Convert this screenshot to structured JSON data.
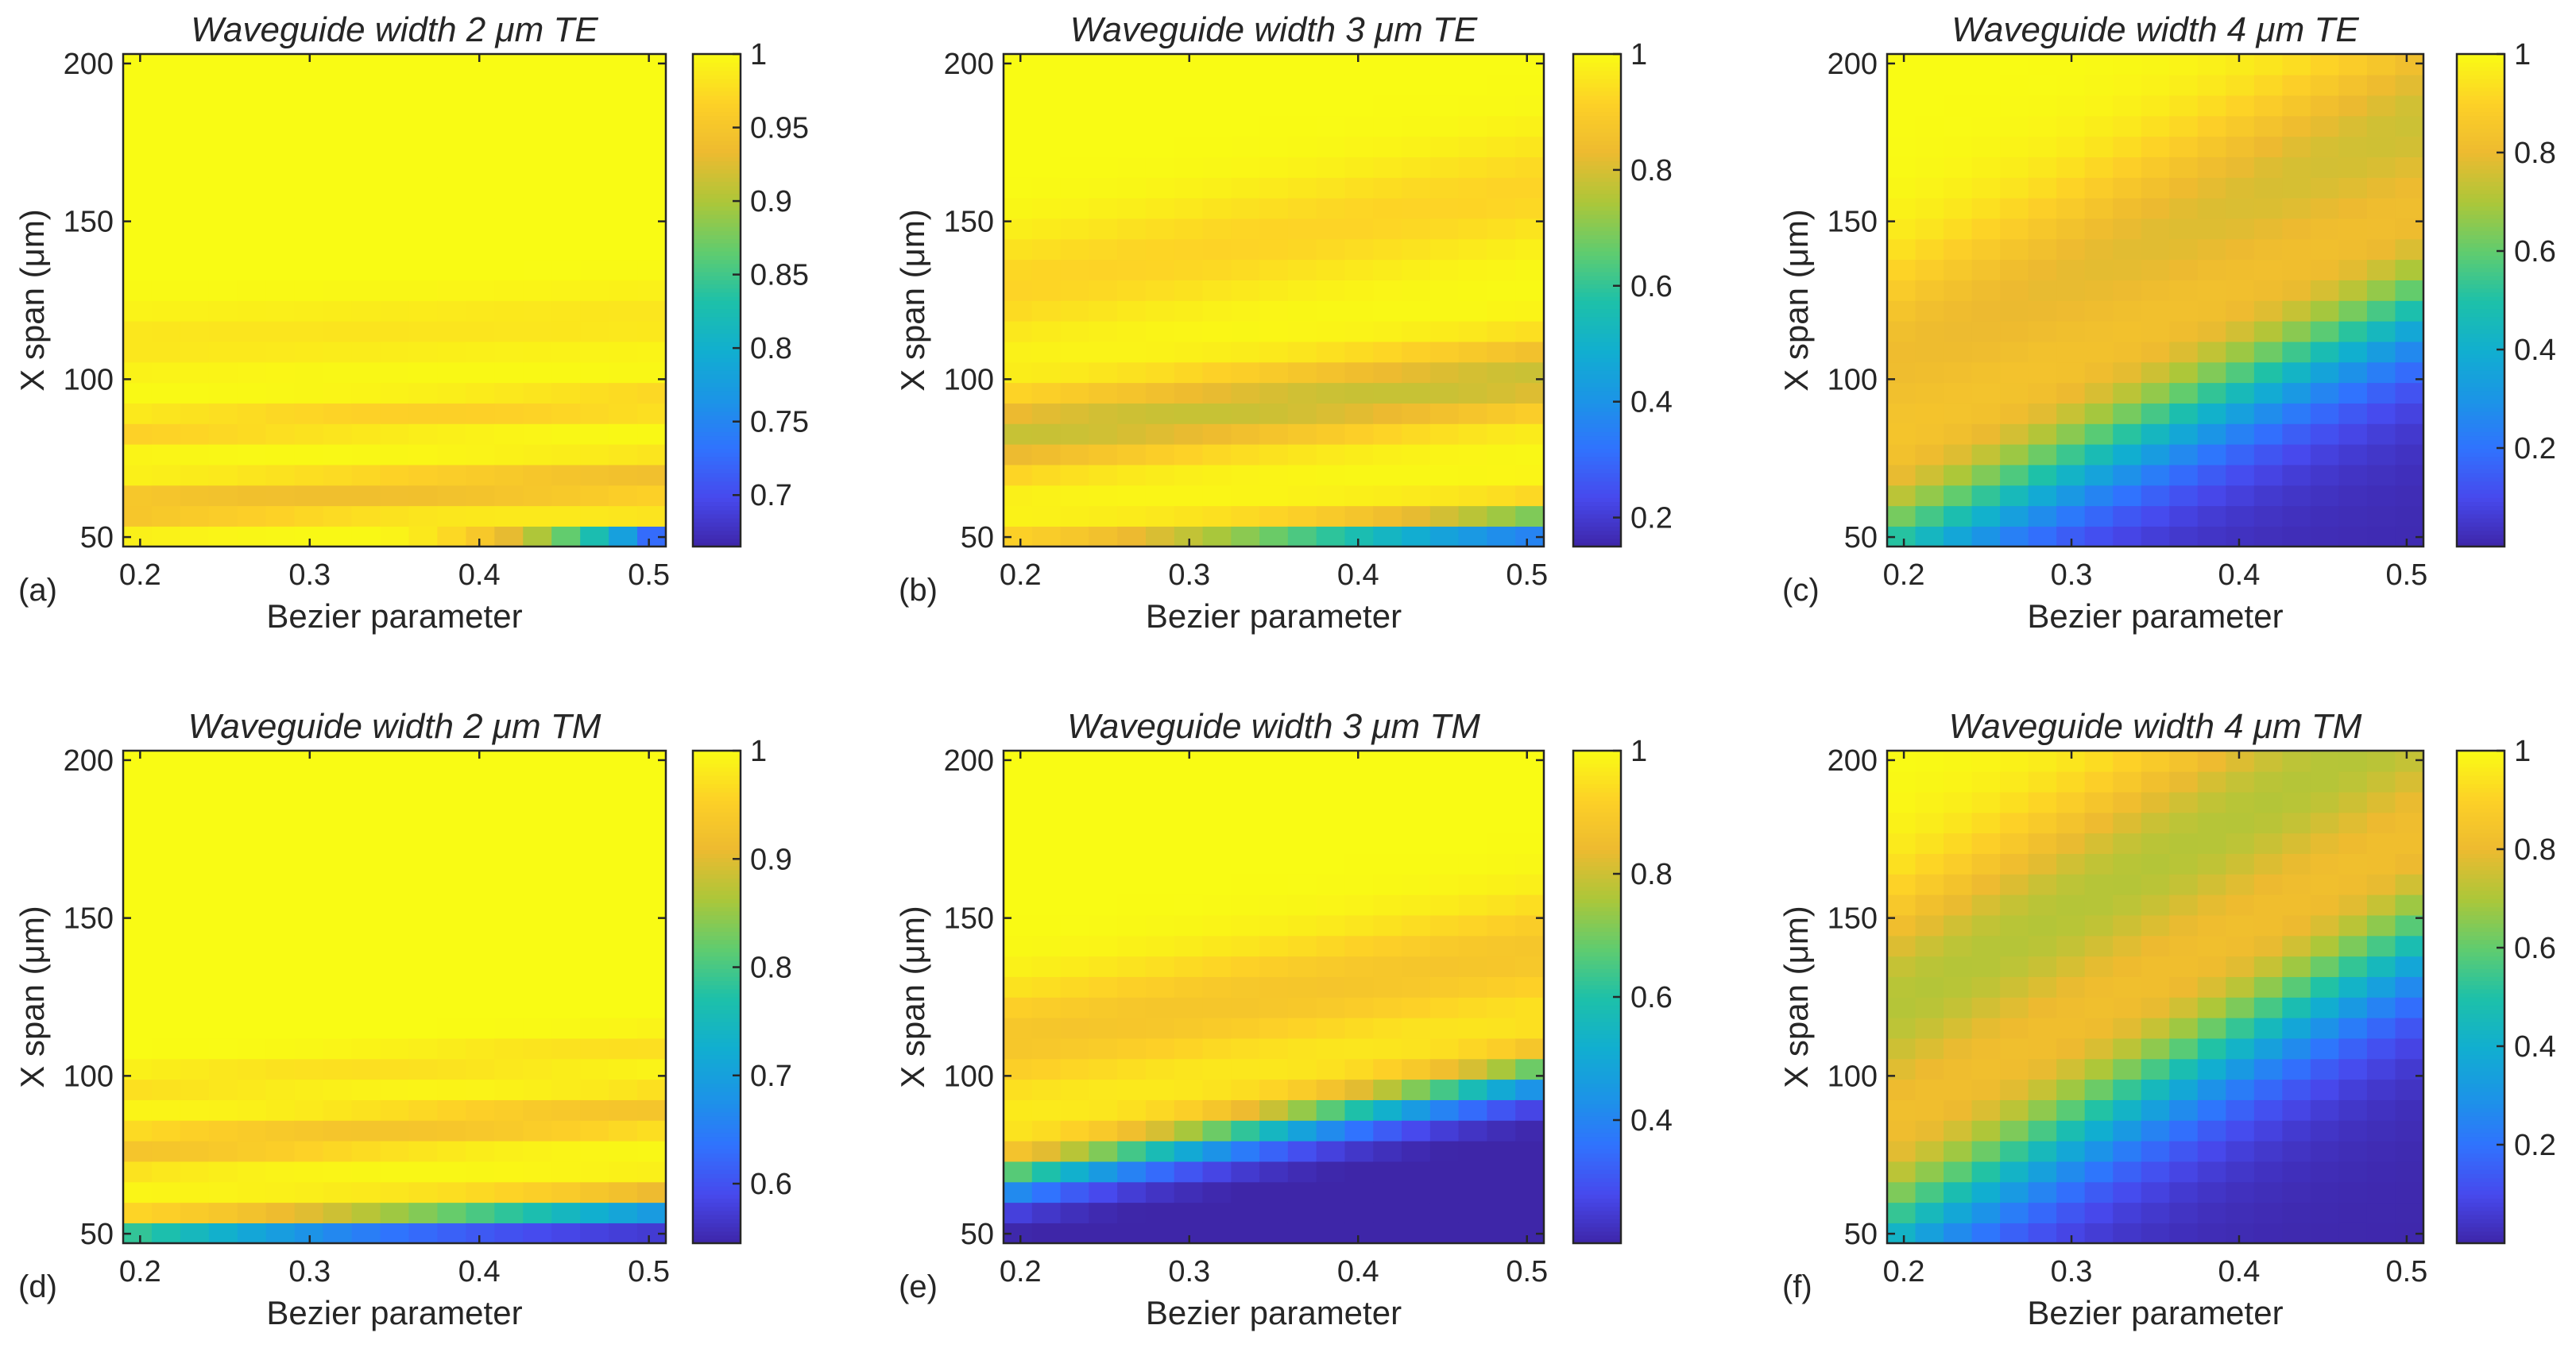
{
  "chart_data": [
    {
      "type": "heatmap",
      "panel": "(a)",
      "title": "Waveguide width 2 μm    TE",
      "xlabel": "Bezier parameter",
      "ylabel": "X span (μm)",
      "xlim": [
        0.19,
        0.51
      ],
      "ylim": [
        47,
        203
      ],
      "xticks": [
        "0.2",
        "0.3",
        "0.4",
        "0.5"
      ],
      "yticks": [
        "50",
        "100",
        "150",
        "200"
      ],
      "colorbar": {
        "min": 0.665,
        "max": 1.0,
        "ticks": [
          "0.7",
          "0.75",
          "0.8",
          "0.85",
          "0.9",
          "0.95",
          "1"
        ]
      },
      "model": {
        "kind": "a"
      }
    },
    {
      "type": "heatmap",
      "panel": "(b)",
      "title": "Waveguide width 3 μm    TE",
      "xlabel": "Bezier parameter",
      "ylabel": "X span (μm)",
      "xlim": [
        0.19,
        0.51
      ],
      "ylim": [
        47,
        203
      ],
      "xticks": [
        "0.2",
        "0.3",
        "0.4",
        "0.5"
      ],
      "yticks": [
        "50",
        "100",
        "150",
        "200"
      ],
      "colorbar": {
        "min": 0.15,
        "max": 1.0,
        "ticks": [
          "0.2",
          "0.4",
          "0.6",
          "0.8",
          "1"
        ]
      },
      "model": {
        "kind": "b"
      }
    },
    {
      "type": "heatmap",
      "panel": "(c)",
      "title": "Waveguide width 4 μm    TE",
      "xlabel": "Bezier parameter",
      "ylabel": "X span (μm)",
      "xlim": [
        0.19,
        0.51
      ],
      "ylim": [
        47,
        203
      ],
      "xticks": [
        "0.2",
        "0.3",
        "0.4",
        "0.5"
      ],
      "yticks": [
        "50",
        "100",
        "150",
        "200"
      ],
      "colorbar": {
        "min": 0.0,
        "max": 1.0,
        "ticks": [
          "0.2",
          "0.4",
          "0.6",
          "0.8",
          "1"
        ]
      },
      "model": {
        "kind": "c"
      }
    },
    {
      "type": "heatmap",
      "panel": "(d)",
      "title": "Waveguide width 2  μm    TM",
      "xlabel": "Bezier parameter",
      "ylabel": "X span (μm)",
      "xlim": [
        0.19,
        0.51
      ],
      "ylim": [
        47,
        203
      ],
      "xticks": [
        "0.2",
        "0.3",
        "0.4",
        "0.5"
      ],
      "yticks": [
        "50",
        "100",
        "150",
        "200"
      ],
      "colorbar": {
        "min": 0.545,
        "max": 1.0,
        "ticks": [
          "0.6",
          "0.7",
          "0.8",
          "0.9",
          "1"
        ]
      },
      "model": {
        "kind": "d"
      }
    },
    {
      "type": "heatmap",
      "panel": "(e)",
      "title": "Waveguide width 3 μm    TM",
      "xlabel": "Bezier parameter",
      "ylabel": "X span (μm)",
      "xlim": [
        0.19,
        0.51
      ],
      "ylim": [
        47,
        203
      ],
      "xticks": [
        "0.2",
        "0.3",
        "0.4",
        "0.5"
      ],
      "yticks": [
        "50",
        "100",
        "150",
        "200"
      ],
      "colorbar": {
        "min": 0.2,
        "max": 1.0,
        "ticks": [
          "0.4",
          "0.6",
          "0.8",
          "1"
        ]
      },
      "model": {
        "kind": "e"
      }
    },
    {
      "type": "heatmap",
      "panel": "(f)",
      "title": "Waveguide width 4 μm    TM",
      "xlabel": "Bezier parameter",
      "ylabel": "X span (μm)",
      "xlim": [
        0.19,
        0.51
      ],
      "ylim": [
        47,
        203
      ],
      "xticks": [
        "0.2",
        "0.3",
        "0.4",
        "0.5"
      ],
      "yticks": [
        "50",
        "100",
        "150",
        "200"
      ],
      "colorbar": {
        "min": 0.0,
        "max": 1.0,
        "ticks": [
          "0.2",
          "0.4",
          "0.6",
          "0.8",
          "1"
        ]
      },
      "model": {
        "kind": "f"
      }
    }
  ]
}
